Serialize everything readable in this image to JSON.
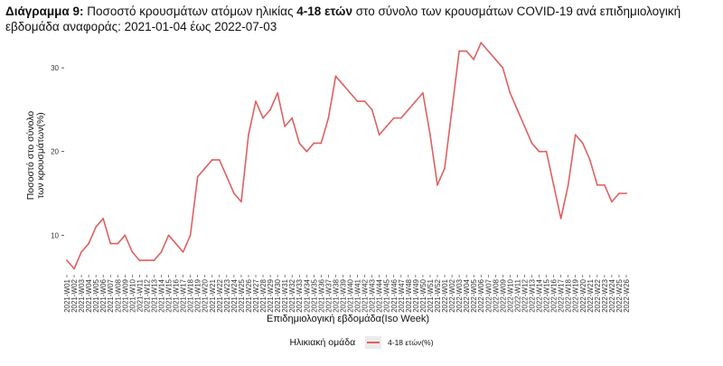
{
  "title": {
    "lead": "Διάγραμμα 9:",
    "text1": " Ποσοστό κρουσμάτων ατόμων ηλικίας ",
    "bold": "4-18 ετών",
    "text2": " στο σύνολο των κρουσμάτων COVID-19 ανά επιδημιολογική εβδομάδα αναφοράς: 2021-01-04 έως 2022-07-03"
  },
  "colors": {
    "line": "#e06060",
    "axis_text": "#333333"
  },
  "legend": {
    "title": "Ηλικιακή ομάδα",
    "item": "4-18 ετών(%)"
  },
  "chart_data": {
    "type": "line",
    "xlabel": "Επιδημιολογική εβδομάδα(Iso Week)",
    "ylabel_lines": [
      "Ποσοστό στο σύνολο",
      "των κρουσμάτων(%)"
    ],
    "y_ticks": [
      10,
      20,
      30
    ],
    "ylim": [
      5.5,
      34
    ],
    "grid": false,
    "legend_position": "bottom",
    "x": [
      "2021-W01",
      "2021-W02",
      "2021-W03",
      "2021-W04",
      "2021-W05",
      "2021-W06",
      "2021-W07",
      "2021-W08",
      "2021-W09",
      "2021-W10",
      "2021-W11",
      "2021-W12",
      "2021-W13",
      "2021-W14",
      "2021-W15",
      "2021-W16",
      "2021-W17",
      "2021-W18",
      "2021-W19",
      "2021-W20",
      "2021-W21",
      "2021-W22",
      "2021-W23",
      "2021-W24",
      "2021-W25",
      "2021-W26",
      "2021-W27",
      "2021-W28",
      "2021-W29",
      "2021-W30",
      "2021-W31",
      "2021-W32",
      "2021-W33",
      "2021-W34",
      "2021-W35",
      "2021-W36",
      "2021-W37",
      "2021-W38",
      "2021-W39",
      "2021-W40",
      "2021-W41",
      "2021-W42",
      "2021-W43",
      "2021-W44",
      "2021-W45",
      "2021-W46",
      "2021-W47",
      "2021-W48",
      "2021-W49",
      "2021-W50",
      "2021-W51",
      "2021-W52",
      "2022-W01",
      "2022-W02",
      "2022-W03",
      "2022-W04",
      "2022-W05",
      "2022-W06",
      "2022-W07",
      "2022-W08",
      "2022-W09",
      "2022-W10",
      "2022-W11",
      "2022-W12",
      "2022-W13",
      "2022-W14",
      "2022-W15",
      "2022-W16",
      "2022-W17",
      "2022-W18",
      "2022-W19",
      "2022-W20",
      "2022-W21",
      "2022-W22",
      "2022-W23",
      "2022-W24",
      "2022-W25",
      "2022-W26"
    ],
    "series": [
      {
        "values": [
          7,
          6,
          8,
          9,
          11,
          12,
          9,
          9,
          10,
          8,
          7,
          7,
          7,
          8,
          10,
          9,
          8,
          10,
          17,
          18,
          19,
          19,
          17,
          15,
          14,
          22,
          26,
          24,
          25,
          27,
          23,
          24,
          21,
          20,
          21,
          21,
          24,
          29,
          28,
          27,
          26,
          26,
          25,
          22,
          23,
          24,
          24,
          25,
          26,
          27,
          22,
          16,
          18,
          25,
          32,
          32,
          31,
          33,
          32,
          31,
          30,
          27,
          25,
          23,
          21,
          20,
          20,
          16,
          12,
          16,
          22,
          21,
          19,
          16,
          16,
          14,
          15,
          15
        ]
      }
    ]
  }
}
